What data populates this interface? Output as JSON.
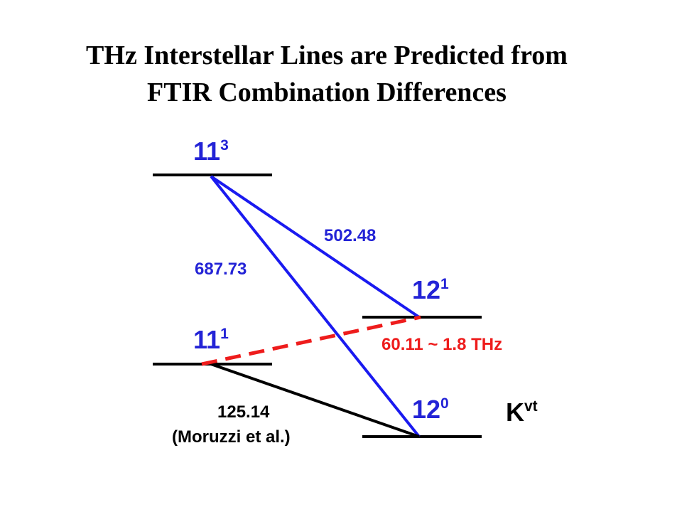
{
  "title": {
    "line1": "THz Interstellar Lines are Predicted from",
    "line2": "FTIR Combination Differences"
  },
  "levels": {
    "l11_3": {
      "base": "11",
      "sup": "3"
    },
    "l11_1": {
      "base": "11",
      "sup": "1"
    },
    "l12_1": {
      "base": "12",
      "sup": "1"
    },
    "l12_0": {
      "base": "12",
      "sup": "0"
    }
  },
  "transitions": {
    "t502": "502.48",
    "t687": "687.73",
    "t60": "60.11 ~ 1.8 THz",
    "t125": "125.14",
    "t125_ref": "(Moruzzi et al.)"
  },
  "axis_label": {
    "base": "K",
    "sup": "vt"
  },
  "colors": {
    "levels_text": "#2323d6",
    "transition_blue": "#1a1af0",
    "transition_red": "#ee1c1c",
    "black": "#000000"
  }
}
